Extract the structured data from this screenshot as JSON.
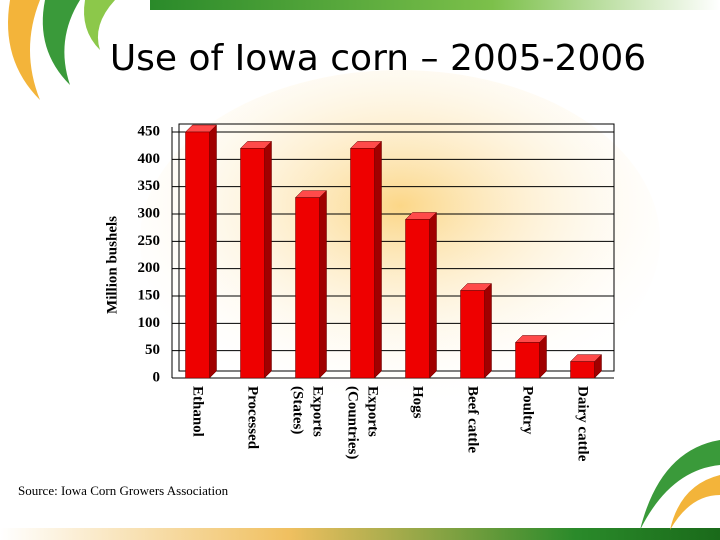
{
  "chart_data": {
    "type": "bar3d",
    "title": "Use of Iowa corn – 2005-2006",
    "y_label": "Million bushels",
    "categories": [
      "Ethanol",
      "Processed",
      "Exports (States)",
      "Exports (Countries)",
      "Hogs",
      "Beef cattle",
      "Poultry",
      "Dairy cattle"
    ],
    "values": [
      450,
      420,
      330,
      420,
      290,
      160,
      65,
      30
    ],
    "color": "#ee0000",
    "ylim": [
      0,
      450
    ],
    "yticks": [
      0,
      50,
      100,
      150,
      200,
      250,
      300,
      350,
      400,
      450
    ],
    "grid": true,
    "source": "Source: Iowa Corn Growers Association"
  }
}
